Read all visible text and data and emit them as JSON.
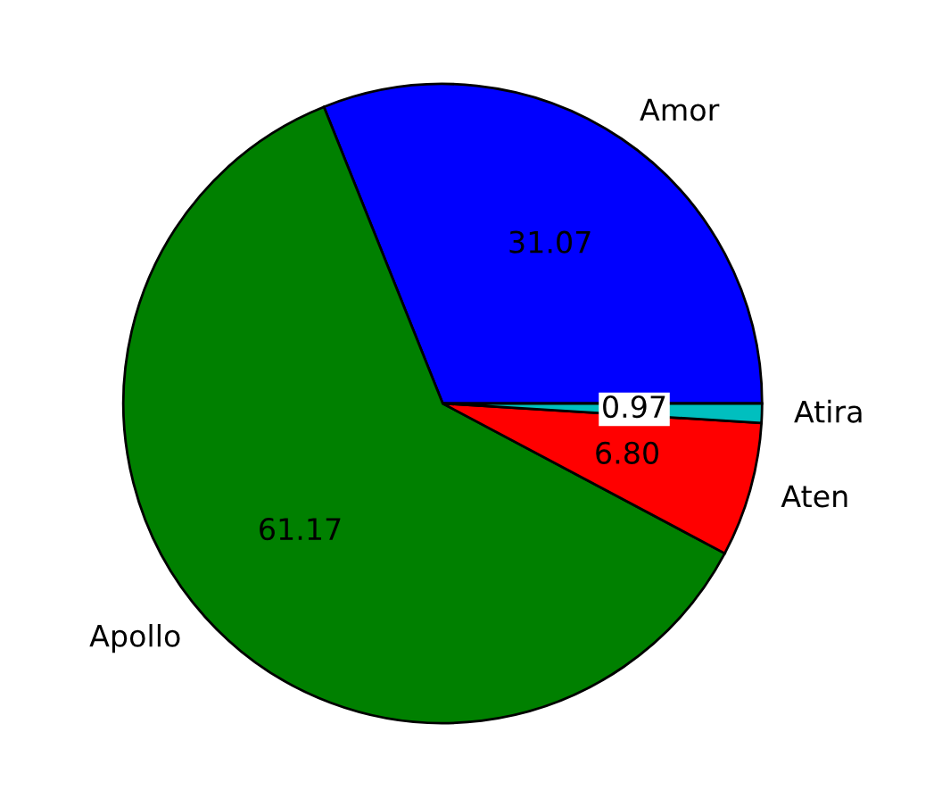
{
  "chart_data": {
    "type": "pie",
    "categories": [
      "Amor",
      "Apollo",
      "Aten",
      "Atira"
    ],
    "values": [
      31.07,
      61.17,
      6.8,
      0.97
    ],
    "value_labels": [
      "31.07",
      "61.17",
      "6.80",
      "0.97"
    ],
    "colors": [
      "#0000ff",
      "#008000",
      "#ff0000",
      "#00bfbf"
    ]
  }
}
